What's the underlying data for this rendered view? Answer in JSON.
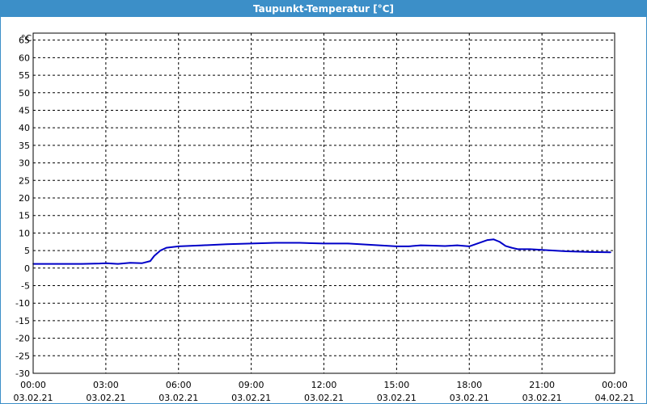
{
  "window": {
    "title": "Taupunkt-Temperatur [°C]",
    "title_bar_color": "#3c8fc8"
  },
  "chart_data": {
    "type": "line",
    "title": "Taupunkt-Temperatur [°C]",
    "ylabel": "°C",
    "xlabel": "",
    "ylim": [
      -30,
      67
    ],
    "xlim": [
      "2021-02-03 00:00",
      "2021-02-04 00:00"
    ],
    "grid": true,
    "legend": "none",
    "y_ticks": [
      65,
      60,
      55,
      50,
      45,
      40,
      35,
      30,
      25,
      20,
      15,
      10,
      5,
      0,
      -5,
      -10,
      -15,
      -20,
      -25,
      -30
    ],
    "x_ticks": [
      {
        "time": "00:00",
        "date": "03.02.21"
      },
      {
        "time": "03:00",
        "date": "03.02.21"
      },
      {
        "time": "06:00",
        "date": "03.02.21"
      },
      {
        "time": "09:00",
        "date": "03.02.21"
      },
      {
        "time": "12:00",
        "date": "03.02.21"
      },
      {
        "time": "15:00",
        "date": "03.02.21"
      },
      {
        "time": "18:00",
        "date": "03.02.21"
      },
      {
        "time": "21:00",
        "date": "03.02.21"
      },
      {
        "time": "00:00",
        "date": "04.02.21"
      }
    ],
    "series": [
      {
        "color": "#0000c8",
        "x": [
          "00:00",
          "01:00",
          "02:00",
          "02:45",
          "03:00",
          "03:30",
          "04:00",
          "04:30",
          "04:50",
          "05:00",
          "05:15",
          "05:30",
          "06:00",
          "07:00",
          "08:00",
          "09:00",
          "10:00",
          "11:00",
          "12:00",
          "13:00",
          "14:00",
          "15:00",
          "15:30",
          "16:00",
          "16:30",
          "17:00",
          "17:30",
          "18:00",
          "18:20",
          "18:45",
          "19:00",
          "19:15",
          "19:30",
          "19:45",
          "20:00",
          "20:30",
          "21:00",
          "22:00",
          "23:00",
          "23:50"
        ],
        "y": [
          1.2,
          1.2,
          1.2,
          1.3,
          1.4,
          1.2,
          1.5,
          1.4,
          2.0,
          3.5,
          5.0,
          5.8,
          6.2,
          6.5,
          6.8,
          7.0,
          7.2,
          7.2,
          7.0,
          7.0,
          6.6,
          6.2,
          6.2,
          6.5,
          6.4,
          6.3,
          6.5,
          6.2,
          7.0,
          8.0,
          8.2,
          7.5,
          6.3,
          5.8,
          5.4,
          5.4,
          5.2,
          4.8,
          4.6,
          4.5
        ]
      }
    ]
  }
}
